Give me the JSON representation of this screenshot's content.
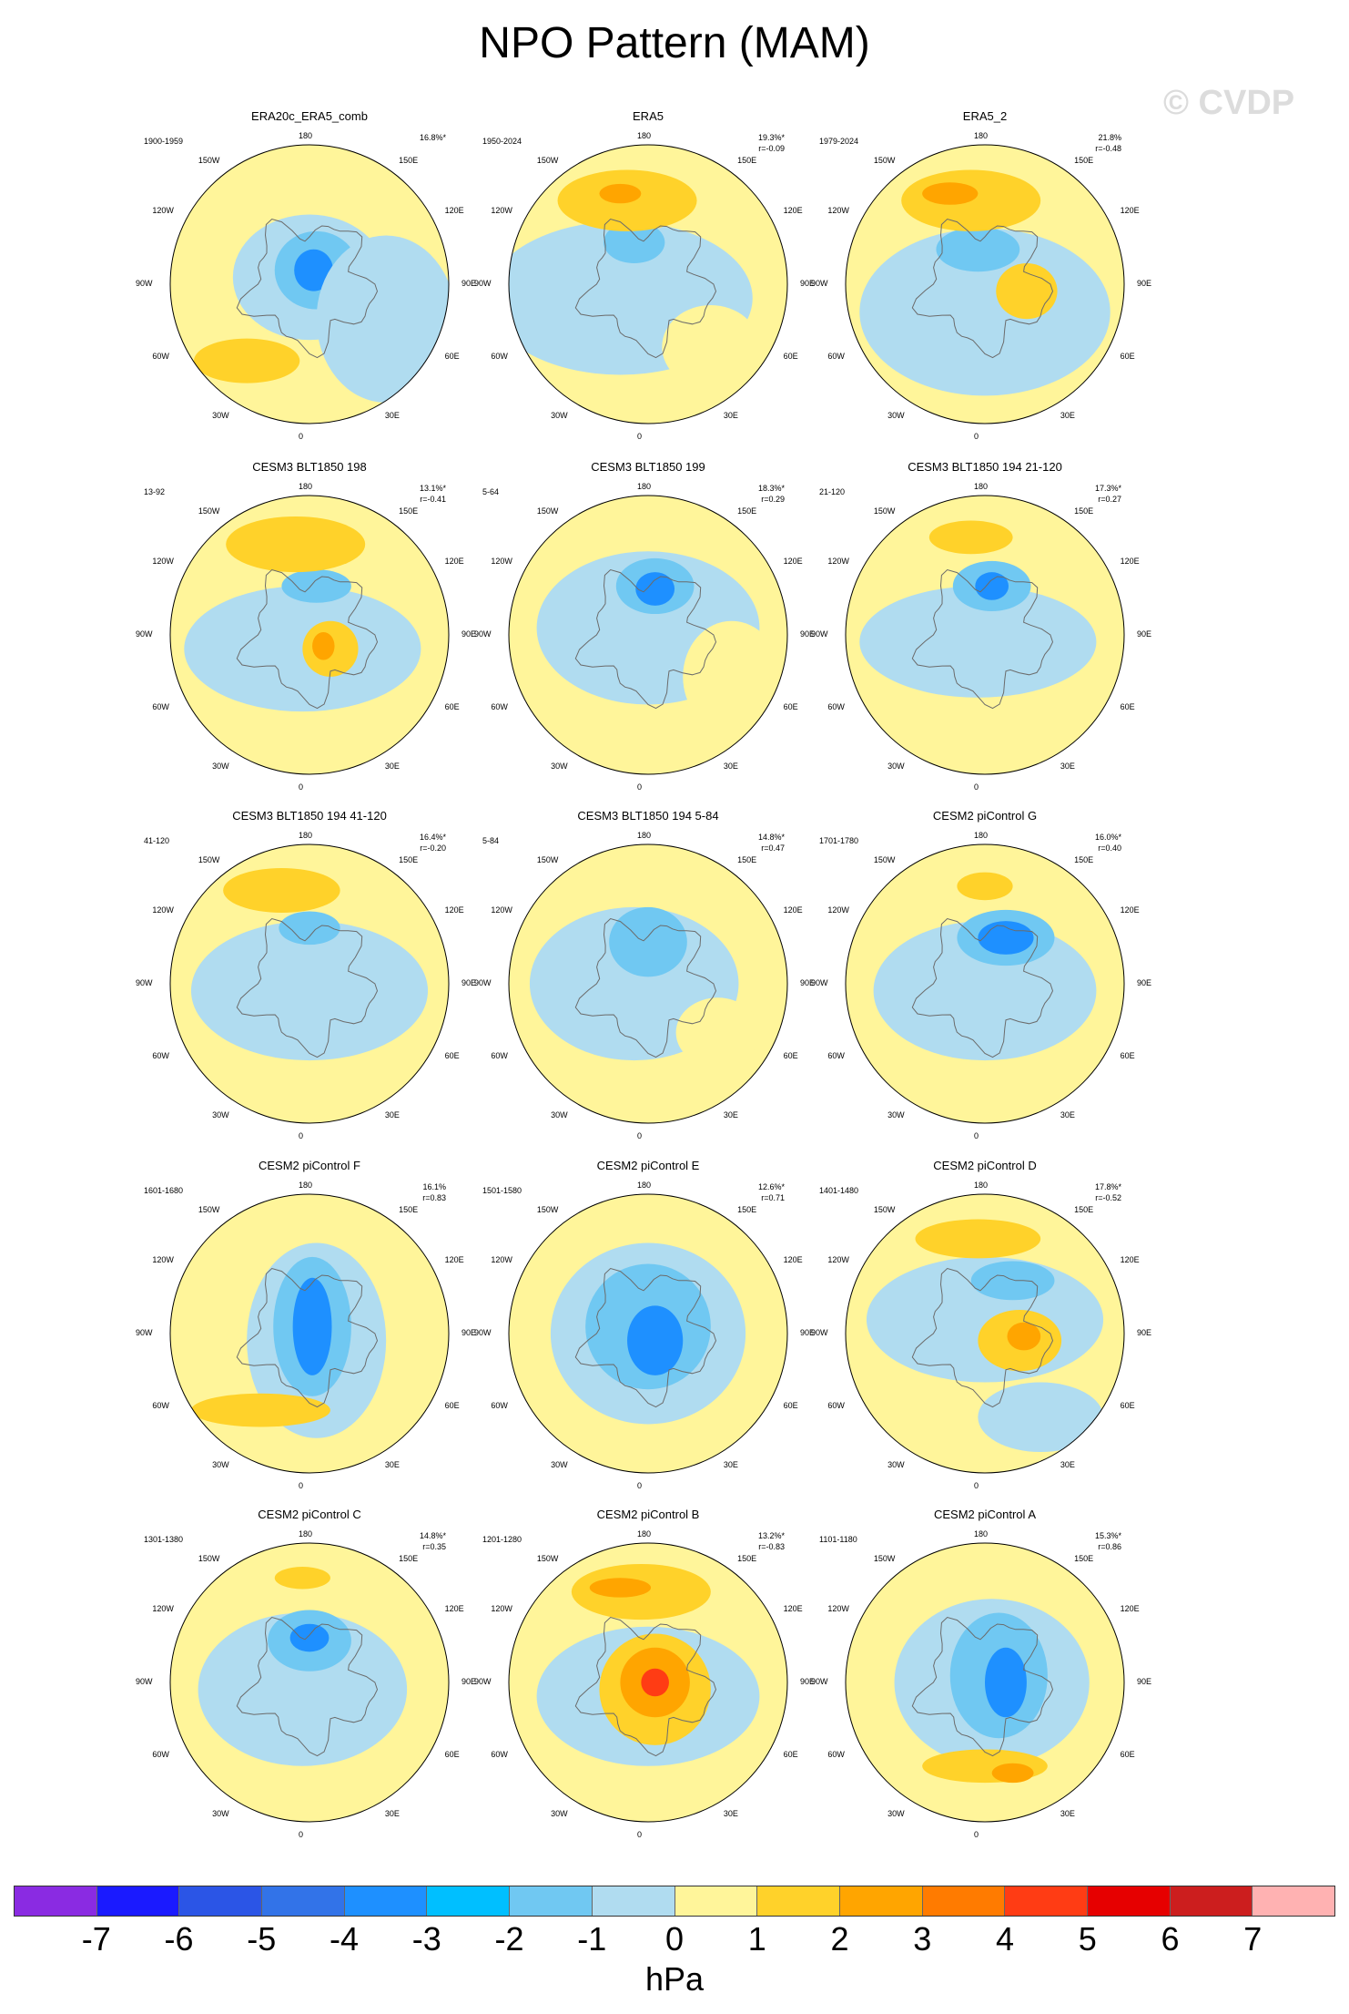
{
  "title": "NPO Pattern (MAM)",
  "watermark": "© CVDP",
  "longitude_labels": {
    "top": "180",
    "top_left": "150W",
    "top_right": "150E",
    "upper_left": "120W",
    "upper_right": "120E",
    "left": "90W",
    "right": "90E",
    "lower_left": "60W",
    "lower_right": "60E",
    "bottom_left": "30W",
    "bottom_right": "30E",
    "bottom": "0"
  },
  "panels": [
    {
      "title": "ERA20c_ERA5_comb",
      "period": "1900-1959",
      "percent": "16.8%*",
      "corr": ""
    },
    {
      "title": "ERA5",
      "period": "1950-2024",
      "percent": "19.3%*",
      "corr": "r=-0.09"
    },
    {
      "title": "ERA5_2",
      "period": "1979-2024",
      "percent": "21.8%",
      "corr": "r=-0.48"
    },
    {
      "title": "CESM3 BLT1850 198",
      "period": "13-92",
      "percent": "13.1%*",
      "corr": "r=-0.41"
    },
    {
      "title": "CESM3 BLT1850 199",
      "period": "5-64",
      "percent": "18.3%*",
      "corr": "r=0.29"
    },
    {
      "title": "CESM3 BLT1850 194 21-120",
      "period": "21-120",
      "percent": "17.3%*",
      "corr": "r=0.27"
    },
    {
      "title": "CESM3 BLT1850 194 41-120",
      "period": "41-120",
      "percent": "16.4%*",
      "corr": "r=-0.20"
    },
    {
      "title": "CESM3 BLT1850 194 5-84",
      "period": "5-84",
      "percent": "14.8%*",
      "corr": "r=0.47"
    },
    {
      "title": "CESM2 piControl G",
      "period": "1701-1780",
      "percent": "16.0%*",
      "corr": "r=0.40"
    },
    {
      "title": "CESM2 piControl F",
      "period": "1601-1680",
      "percent": "16.1%",
      "corr": "r=0.83"
    },
    {
      "title": "CESM2 piControl E",
      "period": "1501-1580",
      "percent": "12.6%*",
      "corr": "r=0.71"
    },
    {
      "title": "CESM2 piControl D",
      "period": "1401-1480",
      "percent": "17.8%*",
      "corr": "r=-0.52"
    },
    {
      "title": "CESM2 piControl C",
      "period": "1301-1380",
      "percent": "14.8%*",
      "corr": "r=0.35"
    },
    {
      "title": "CESM2 piControl B",
      "period": "1201-1280",
      "percent": "13.2%*",
      "corr": "r=-0.83"
    },
    {
      "title": "CESM2 piControl A",
      "period": "1101-1180",
      "percent": "15.3%*",
      "corr": "r=0.86"
    }
  ],
  "colorbar": {
    "colors": [
      "#8a2be2",
      "#1a1aff",
      "#2b55e6",
      "#3273e8",
      "#1e90ff",
      "#00bfff",
      "#70c8f2",
      "#b0dcf0",
      "#fff59a",
      "#ffd22a",
      "#ffa500",
      "#ff7b00",
      "#ff3c14",
      "#e60000",
      "#cc1e1e",
      "#ffb2b2"
    ],
    "ticks": [
      "-7",
      "-6",
      "-5",
      "-4",
      "-3",
      "-2",
      "-1",
      "0",
      "1",
      "2",
      "3",
      "4",
      "5",
      "6",
      "7"
    ],
    "unit": "hPa"
  }
}
